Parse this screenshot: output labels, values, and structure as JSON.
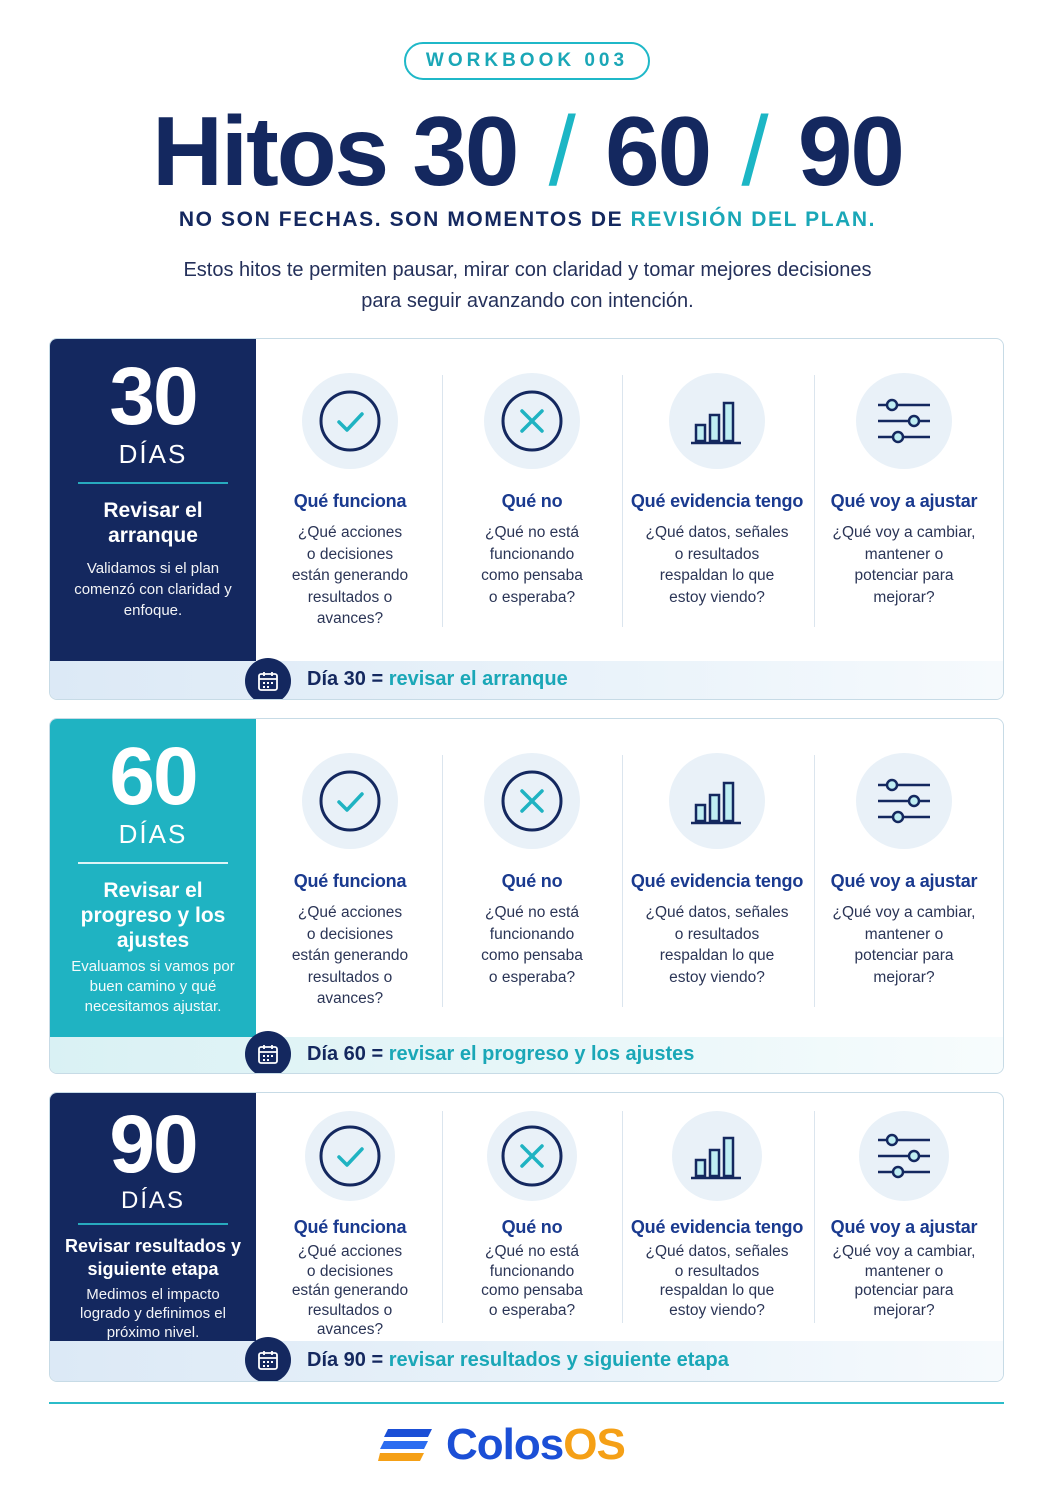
{
  "header": {
    "badge": "WORKBOOK 003",
    "title_prefix": "Hitos 30",
    "title_slash": "/",
    "title_mid": "60",
    "title_end": "90",
    "subtitle_a": "NO SON FECHAS. SON MOMENTOS DE ",
    "subtitle_b": "REVISIÓN DEL PLAN.",
    "intro_line1": "Estos hitos te permiten pausar, mirar con claridad y tomar mejores decisiones",
    "intro_line2": "para seguir avanzando con intención."
  },
  "columns": {
    "works": {
      "head": "Qué funciona",
      "q": "¿Qué acciones o decisiones están generando resultados o avances?",
      "icon": "check-circle-icon"
    },
    "not": {
      "head": "Qué no",
      "q": "¿Qué no está funcionando como pensaba o esperaba?",
      "icon": "x-circle-icon"
    },
    "evidence": {
      "head": "Qué evidencia tengo",
      "q": "¿Qué datos, señales o resultados respaldan lo que estoy viendo?",
      "icon": "bar-chart-icon"
    },
    "adjust": {
      "head": "Qué voy a ajustar",
      "q": "¿Qué voy a cambiar, mantener o potenciar para mejorar?",
      "icon": "sliders-icon"
    }
  },
  "sections": [
    {
      "num": "30",
      "dias": "DÍAS",
      "phase": "Revisar el arranque",
      "desc": "Validamos si el plan comenzó con claridad y enfoque.",
      "footer_a": "Día 30 = ",
      "footer_b": "revisar el arranque"
    },
    {
      "num": "60",
      "dias": "DÍAS",
      "phase": "Revisar el progreso y los ajustes",
      "desc": "Evaluamos si vamos por buen camino y qué necesitamos ajustar.",
      "footer_a": "Día 60 = ",
      "footer_b": "revisar el progreso y los ajustes"
    },
    {
      "num": "90",
      "dias": "DÍAS",
      "phase": "Revisar resultados y siguiente etapa",
      "desc": "Medimos el impacto logrado y definimos el próximo nivel.",
      "footer_a": "Día 90 = ",
      "footer_b": "revisar resultados y siguiente etapa"
    }
  ],
  "brand": {
    "name_a": "Colos",
    "name_b": "OS",
    "colors": {
      "navy": "#14285f",
      "teal": "#1fb3c2",
      "blue": "#1b4fd6",
      "orange": "#f5a016"
    }
  }
}
